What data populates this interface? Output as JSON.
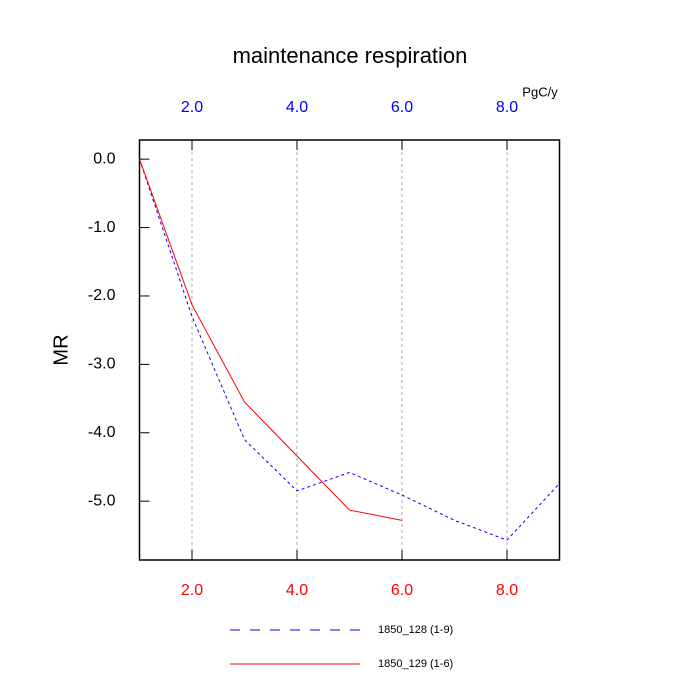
{
  "chart_data": {
    "type": "line",
    "title": "maintenance respiration",
    "ylabel": "MR",
    "x2label": "PgC/y",
    "x": [
      1,
      2,
      3,
      4,
      5,
      6,
      7,
      8,
      9
    ],
    "series": [
      {
        "name": "1850_128 (1-9)",
        "color": "#0000ff",
        "dash": "dashed",
        "values": [
          0.0,
          -2.3,
          -4.1,
          -4.85,
          -4.58,
          -4.91,
          -5.28,
          -5.57,
          -4.74
        ]
      },
      {
        "name": "1850_129 (1-6)",
        "color": "#ff0000",
        "dash": "solid",
        "values": [
          0.0,
          -2.13,
          -3.55,
          -4.34,
          -5.13,
          -5.28,
          null,
          null,
          null
        ]
      }
    ],
    "xlim": [
      1,
      9
    ],
    "xticks": [
      {
        "value": 2,
        "label": "2.0"
      },
      {
        "value": 4,
        "label": "4.0"
      },
      {
        "value": 6,
        "label": "6.0"
      },
      {
        "value": 8,
        "label": "8.0"
      }
    ],
    "x_bottom_color": "#ff0000",
    "x_top_color": "#0000ff",
    "ylim": [
      -5.86,
      0.28
    ],
    "yticks": [
      {
        "value": 0,
        "label": "0.0"
      },
      {
        "value": -1,
        "label": "-1.0"
      },
      {
        "value": -2,
        "label": "-2.0"
      },
      {
        "value": -3,
        "label": "-3.0"
      },
      {
        "value": -4,
        "label": "-4.0"
      },
      {
        "value": -5,
        "label": "-5.0"
      }
    ],
    "grid": true
  }
}
